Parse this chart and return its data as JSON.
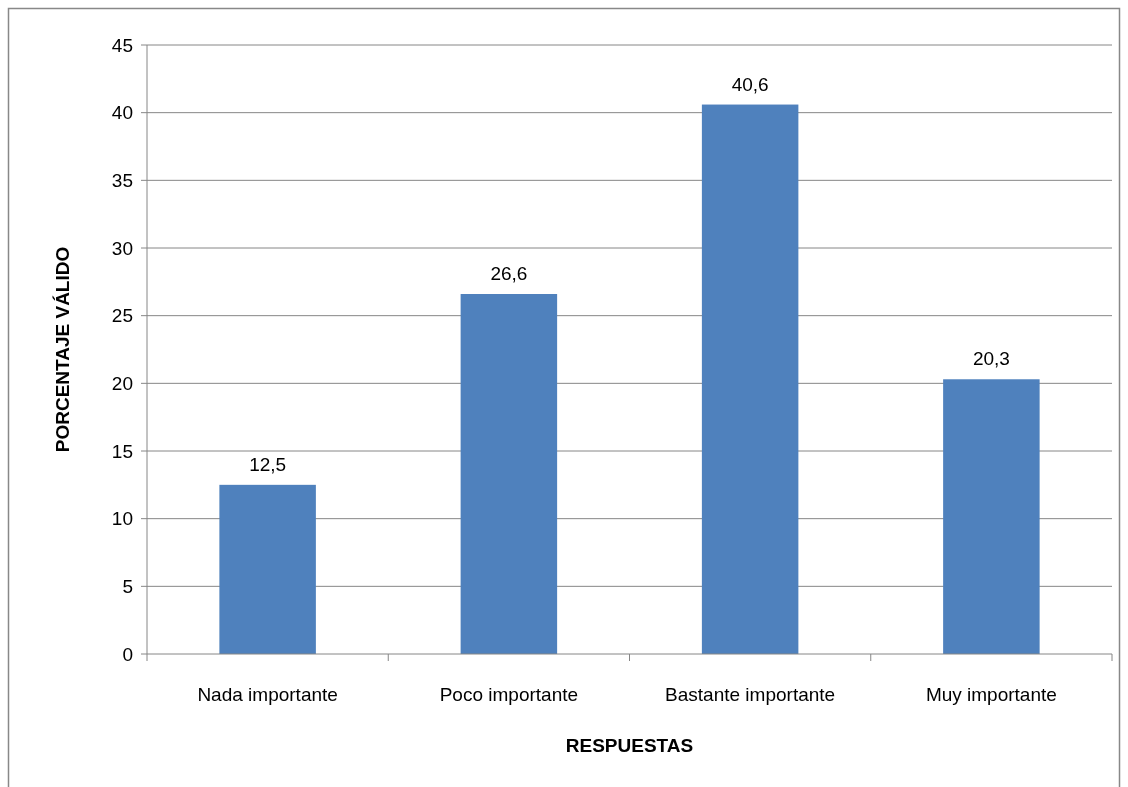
{
  "chart_data": {
    "type": "bar",
    "xlabel": "RESPUESTAS",
    "ylabel": "PORCENTAJE VÁLIDO",
    "categories": [
      "Nada importante",
      "Poco importante",
      "Bastante importante",
      "Muy importante"
    ],
    "values": [
      12.5,
      26.6,
      40.6,
      20.3
    ],
    "value_labels": [
      "12,5",
      "26,6",
      "40,6",
      "20,3"
    ],
    "color": "#4f81bd",
    "ylim": [
      0,
      45
    ],
    "yticks": [
      0,
      5,
      10,
      15,
      20,
      25,
      30,
      35,
      40,
      45
    ],
    "grid": "y"
  }
}
